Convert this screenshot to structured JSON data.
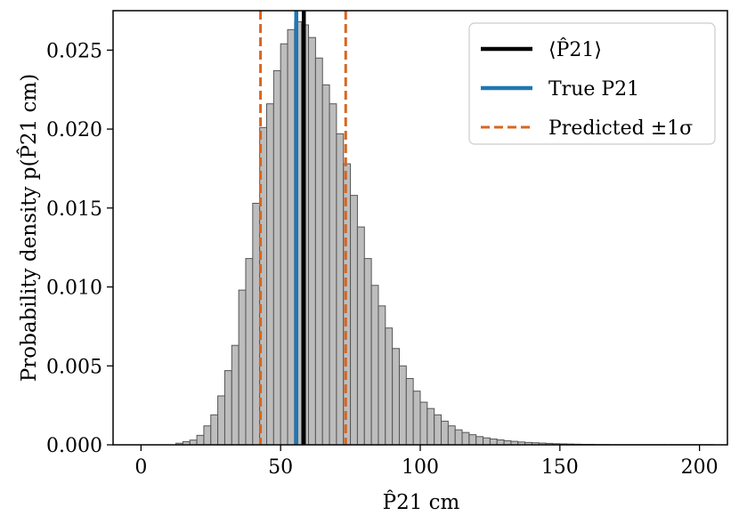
{
  "chart_data": {
    "type": "bar",
    "title": "",
    "xlabel": "P̂21 cm",
    "ylabel": "Probability density p(P̂21 cm)",
    "xlim": [
      -10,
      210
    ],
    "ylim": [
      0,
      0.0275
    ],
    "grid": false,
    "x_ticks": [
      0,
      50,
      100,
      150,
      200
    ],
    "x_tick_labels": [
      "0",
      "50",
      "100",
      "150",
      "200"
    ],
    "y_ticks": [
      0,
      0.005,
      0.01,
      0.015,
      0.02,
      0.025
    ],
    "y_tick_labels": [
      "0.000",
      "0.005",
      "0.010",
      "0.015",
      "0.020",
      "0.025"
    ],
    "histogram": {
      "bin_width": 2.5,
      "bin_start": 12.5,
      "values": [
        0.0001,
        0.0002,
        0.0003,
        0.0006,
        0.0012,
        0.0019,
        0.0031,
        0.0047,
        0.0063,
        0.0098,
        0.0118,
        0.0153,
        0.0201,
        0.0216,
        0.0237,
        0.0254,
        0.0263,
        0.0268,
        0.0266,
        0.0258,
        0.0245,
        0.0228,
        0.0216,
        0.0197,
        0.0178,
        0.0158,
        0.0138,
        0.0118,
        0.0101,
        0.0088,
        0.0074,
        0.0061,
        0.005,
        0.0042,
        0.0034,
        0.0027,
        0.0023,
        0.0019,
        0.0015,
        0.0012,
        0.00095,
        0.00078,
        0.00064,
        0.00052,
        0.00044,
        0.00037,
        0.00031,
        0.00026,
        0.00022,
        0.00018,
        0.00015,
        0.00013,
        0.00011,
        9e-05,
        7e-05,
        6e-05,
        5e-05,
        4e-05,
        3e-05,
        3e-05,
        2e-05,
        2e-05,
        1e-05,
        1e-05,
        1e-05,
        1e-05,
        1e-05,
        1e-05,
        1e-05,
        1e-05,
        1e-05,
        1e-05,
        1e-05,
        1e-05,
        1e-05,
        1e-05,
        1e-05
      ],
      "fill_color": "#bdbdbd",
      "edge_color": "#555555"
    },
    "vlines": [
      {
        "name": "mean",
        "x": 58.3,
        "color": "#000000",
        "style": "solid"
      },
      {
        "name": "true",
        "x": 55.6,
        "color": "#1f77b4",
        "style": "solid"
      },
      {
        "name": "lower-1sigma",
        "x": 42.8,
        "color": "#d9661f",
        "style": "dashed"
      },
      {
        "name": "upper-1sigma",
        "x": 73.3,
        "color": "#d9661f",
        "style": "dashed"
      }
    ],
    "legend": {
      "placement": "top-right",
      "entries": [
        {
          "label": "⟨P̂21⟩",
          "color": "#000000",
          "style": "solid"
        },
        {
          "label": "True P21",
          "color": "#1f77b4",
          "style": "solid"
        },
        {
          "label": "Predicted ±1σ",
          "color": "#d9661f",
          "style": "dashed"
        }
      ]
    }
  }
}
